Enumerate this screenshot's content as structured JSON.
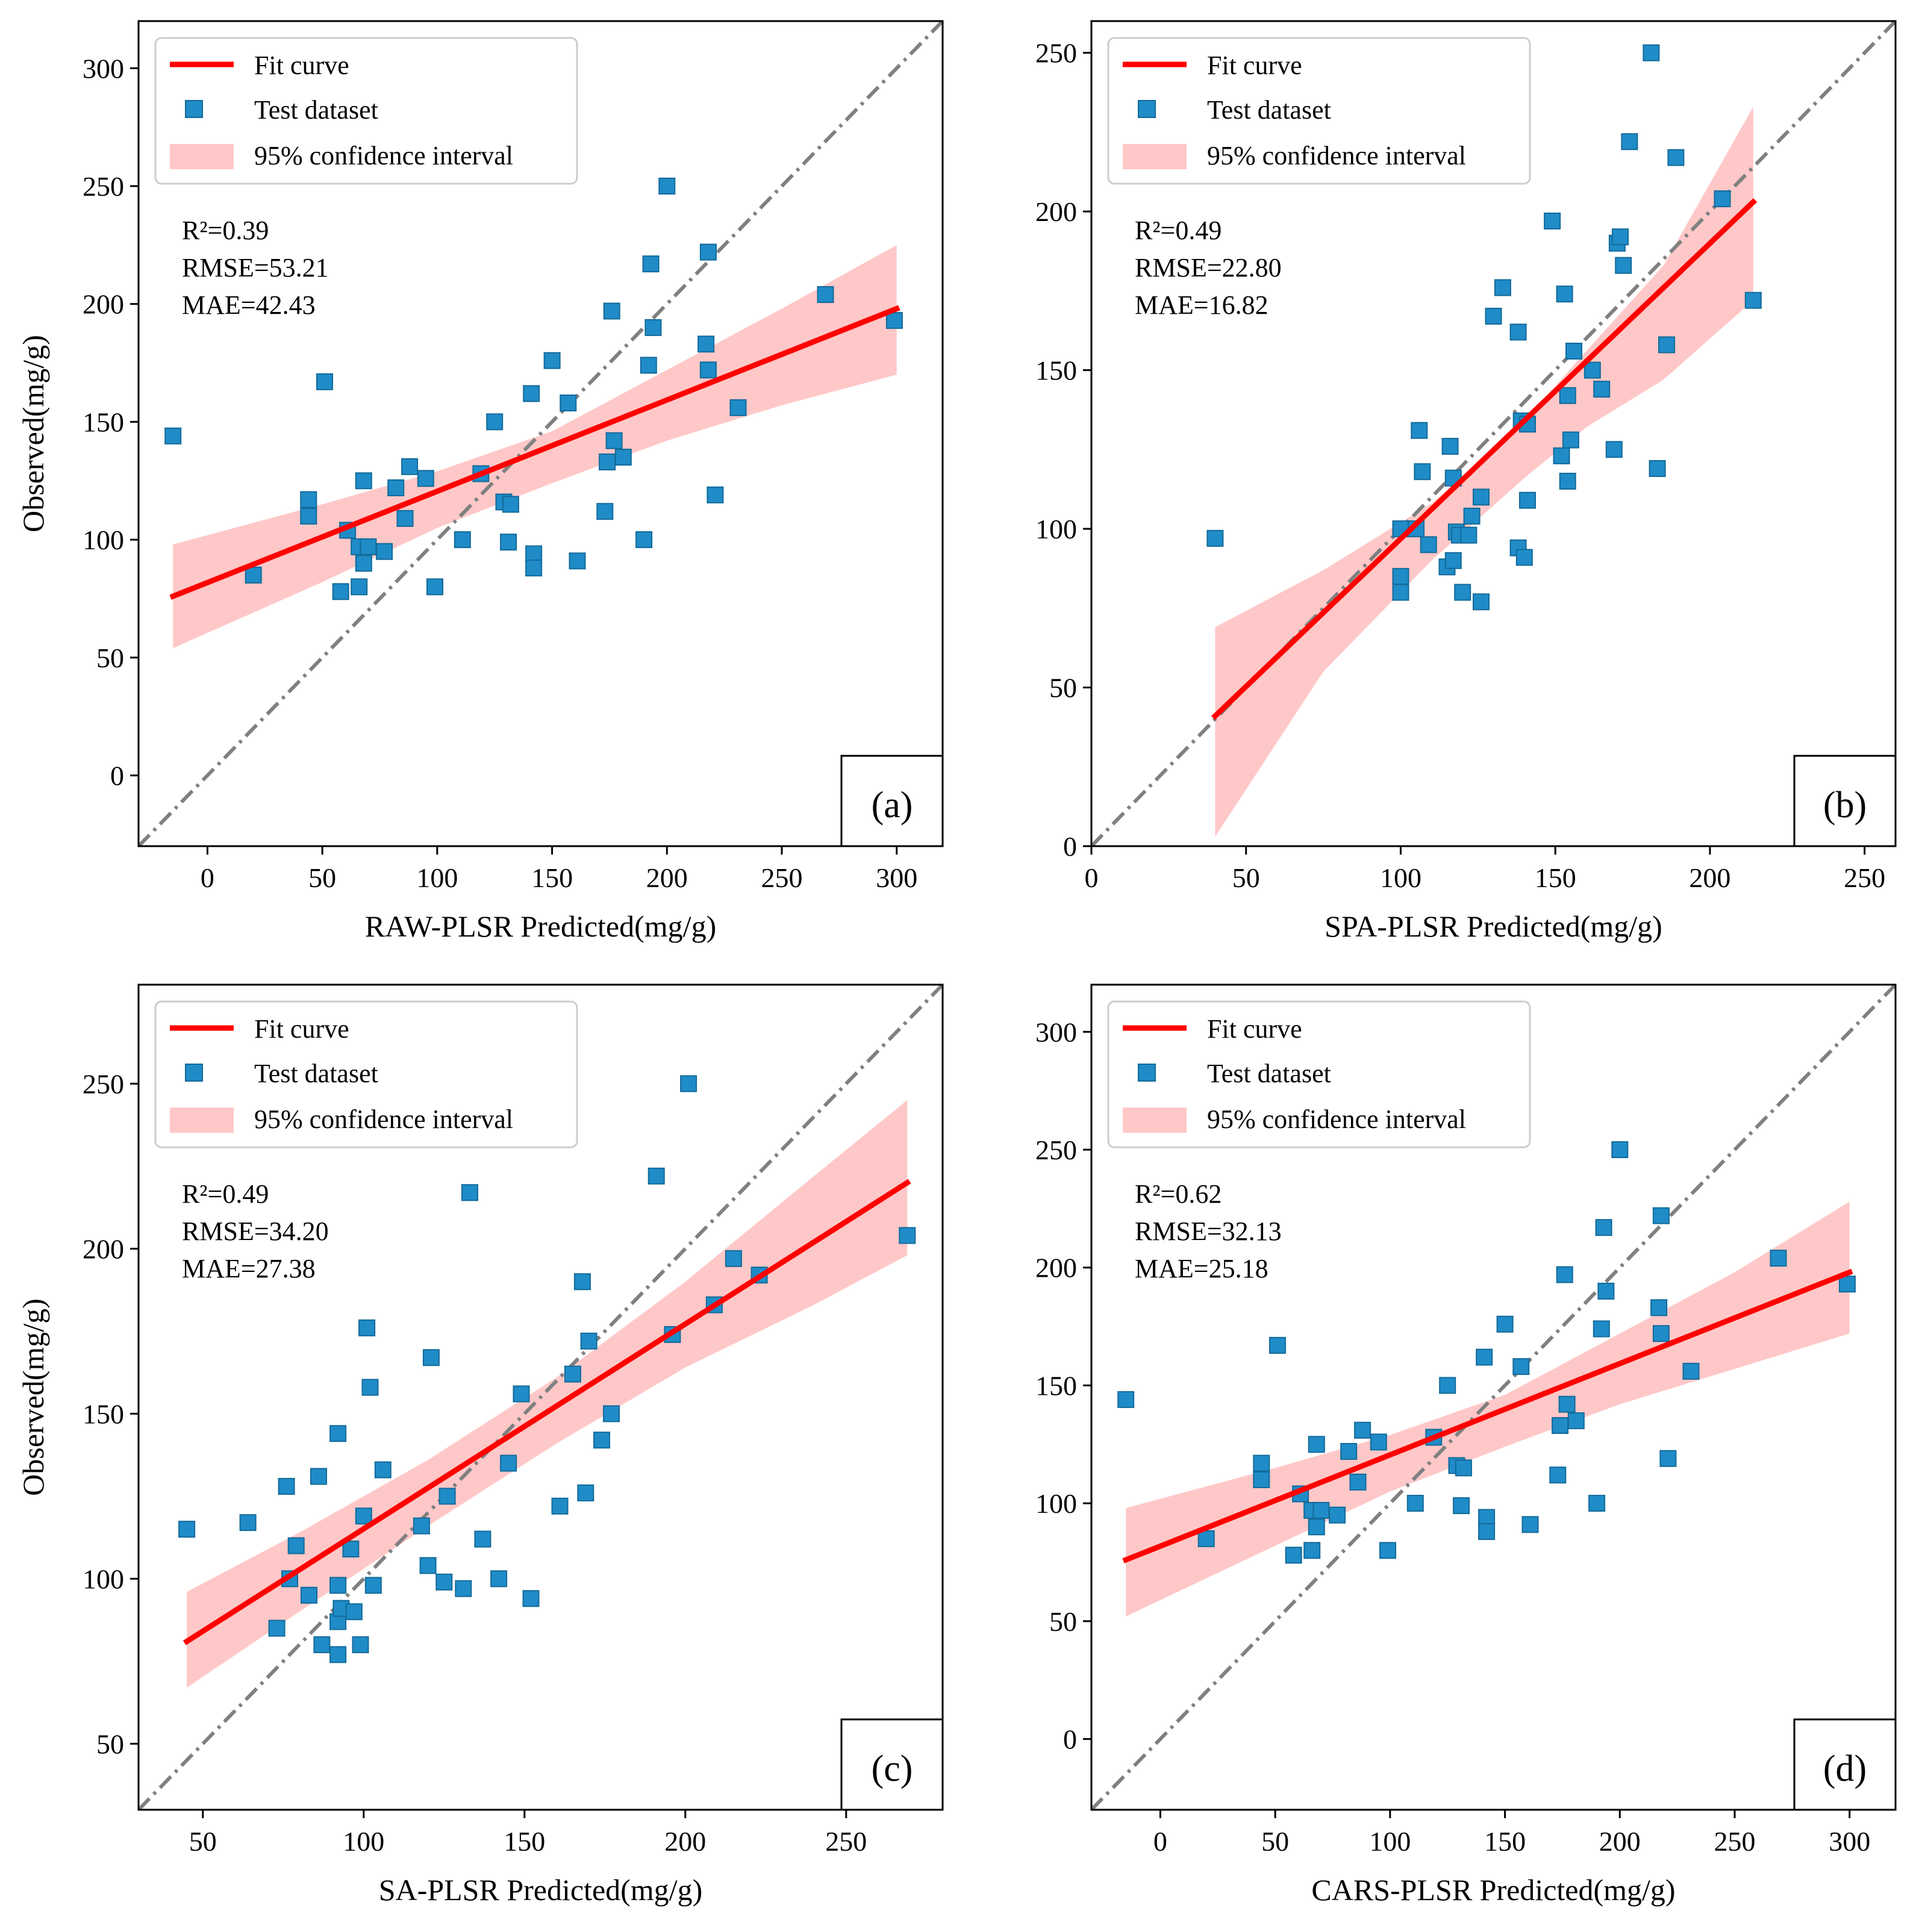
{
  "figure": {
    "colors": {
      "fit": "#ff0000",
      "points": "#1f8cc8",
      "points_stroke": "#136a99",
      "ci_fill": "#ffc8c8",
      "identity": "#808080",
      "axis": "#000000"
    },
    "legend": {
      "fit": "Fit curve",
      "test": "Test dataset",
      "ci": "95% confidence interval"
    }
  },
  "chart_data": [
    {
      "type": "scatter",
      "panel_label": "(a)",
      "xlabel": "RAW-PLSR Predicted(mg/g)",
      "ylabel": "Observed(mg/g)",
      "xlim": [
        -30,
        320
      ],
      "ylim": [
        -30,
        320
      ],
      "xticks": [
        0,
        50,
        100,
        150,
        200,
        250,
        300
      ],
      "yticks": [
        0,
        50,
        100,
        150,
        200,
        250,
        300
      ],
      "stats": [
        "R²=0.39",
        "RMSE=53.21",
        "MAE=42.43"
      ],
      "fit_line": {
        "x": [
          -15,
          300
        ],
        "y": [
          76,
          198
        ]
      },
      "ci": {
        "x": [
          -15,
          50,
          100,
          150,
          200,
          250,
          300
        ],
        "upper": [
          98,
          115,
          129,
          146,
          172,
          198,
          225
        ],
        "lower": [
          54,
          82,
          105,
          124,
          142,
          157,
          170
        ]
      },
      "points": [
        [
          -15,
          144
        ],
        [
          20,
          85
        ],
        [
          44,
          117
        ],
        [
          44,
          110
        ],
        [
          51,
          167
        ],
        [
          58,
          78
        ],
        [
          61,
          104
        ],
        [
          66,
          80
        ],
        [
          66,
          97
        ],
        [
          68,
          125
        ],
        [
          68,
          90
        ],
        [
          70,
          97
        ],
        [
          77,
          95
        ],
        [
          82,
          122
        ],
        [
          86,
          109
        ],
        [
          88,
          131
        ],
        [
          95,
          126
        ],
        [
          99,
          80
        ],
        [
          111,
          100
        ],
        [
          119,
          128
        ],
        [
          125,
          150
        ],
        [
          129,
          116
        ],
        [
          131,
          99
        ],
        [
          132,
          115
        ],
        [
          141,
          162
        ],
        [
          142,
          94
        ],
        [
          142,
          88
        ],
        [
          150,
          176
        ],
        [
          157,
          158
        ],
        [
          161,
          91
        ],
        [
          173,
          112
        ],
        [
          174,
          133
        ],
        [
          176,
          197
        ],
        [
          177,
          142
        ],
        [
          181,
          135
        ],
        [
          190,
          100
        ],
        [
          192,
          174
        ],
        [
          193,
          217
        ],
        [
          194,
          190
        ],
        [
          200,
          250
        ],
        [
          217,
          183
        ],
        [
          218,
          222
        ],
        [
          218,
          172
        ],
        [
          221,
          119
        ],
        [
          231,
          156
        ],
        [
          269,
          204
        ],
        [
          299,
          193
        ]
      ]
    },
    {
      "type": "scatter",
      "panel_label": "(b)",
      "xlabel": "SPA-PLSR Predicted(mg/g)",
      "ylabel": "",
      "xlim": [
        0,
        260
      ],
      "ylim": [
        0,
        260
      ],
      "xticks": [
        0,
        50,
        100,
        150,
        200,
        250
      ],
      "yticks": [
        0,
        50,
        100,
        150,
        200,
        250
      ],
      "stats": [
        "R²=0.49",
        "RMSE=22.80",
        "MAE=16.82"
      ],
      "fit_line": {
        "x": [
          40,
          214
        ],
        "y": [
          41,
          203
        ]
      },
      "ci": {
        "x": [
          40,
          75,
          110,
          140,
          160,
          185,
          214
        ],
        "upper": [
          69,
          87,
          108,
          134,
          156,
          183,
          233
        ],
        "lower": [
          3,
          55,
          90,
          116,
          132,
          147,
          172
        ]
      },
      "points": [
        [
          40,
          97
        ],
        [
          100,
          100
        ],
        [
          100,
          85
        ],
        [
          100,
          80
        ],
        [
          105,
          100
        ],
        [
          106,
          131
        ],
        [
          107,
          118
        ],
        [
          109,
          95
        ],
        [
          115,
          88
        ],
        [
          116,
          126
        ],
        [
          117,
          116
        ],
        [
          117,
          90
        ],
        [
          118,
          99
        ],
        [
          119,
          98
        ],
        [
          120,
          80
        ],
        [
          122,
          98
        ],
        [
          123,
          104
        ],
        [
          126,
          110
        ],
        [
          126,
          77
        ],
        [
          130,
          167
        ],
        [
          133,
          176
        ],
        [
          138,
          162
        ],
        [
          138,
          94
        ],
        [
          139,
          134
        ],
        [
          140,
          91
        ],
        [
          141,
          133
        ],
        [
          141,
          109
        ],
        [
          149,
          197
        ],
        [
          152,
          123
        ],
        [
          153,
          174
        ],
        [
          154,
          142
        ],
        [
          154,
          115
        ],
        [
          155,
          128
        ],
        [
          156,
          156
        ],
        [
          162,
          150
        ],
        [
          165,
          144
        ],
        [
          169,
          125
        ],
        [
          170,
          190
        ],
        [
          171,
          192
        ],
        [
          172,
          183
        ],
        [
          174,
          222
        ],
        [
          181,
          250
        ],
        [
          183,
          119
        ],
        [
          186,
          158
        ],
        [
          189,
          217
        ],
        [
          204,
          204
        ],
        [
          214,
          172
        ]
      ]
    },
    {
      "type": "scatter",
      "panel_label": "(c)",
      "xlabel": "SA-PLSR Predicted(mg/g)",
      "ylabel": "Observed(mg/g)",
      "xlim": [
        30,
        280
      ],
      "ylim": [
        30,
        280
      ],
      "xticks": [
        50,
        100,
        150,
        200,
        250
      ],
      "yticks": [
        50,
        100,
        150,
        200,
        250
      ],
      "stats": [
        "R²=0.49",
        "RMSE=34.20",
        "MAE=27.38"
      ],
      "fit_line": {
        "x": [
          45,
          269
        ],
        "y": [
          81,
          220
        ]
      },
      "ci": {
        "x": [
          45,
          80,
          120,
          160,
          200,
          240,
          269
        ],
        "upper": [
          96,
          114,
          136,
          161,
          190,
          222,
          245
        ],
        "lower": [
          67,
          90,
          116,
          141,
          164,
          183,
          198
        ]
      },
      "points": [
        [
          45,
          115
        ],
        [
          64,
          117
        ],
        [
          73,
          85
        ],
        [
          76,
          128
        ],
        [
          77,
          100
        ],
        [
          79,
          110
        ],
        [
          83,
          95
        ],
        [
          86,
          131
        ],
        [
          87,
          80
        ],
        [
          92,
          144
        ],
        [
          92,
          98
        ],
        [
          92,
          87
        ],
        [
          92,
          77
        ],
        [
          93,
          91
        ],
        [
          96,
          109
        ],
        [
          97,
          90
        ],
        [
          99,
          80
        ],
        [
          100,
          119
        ],
        [
          101,
          176
        ],
        [
          102,
          158
        ],
        [
          103,
          98
        ],
        [
          106,
          133
        ],
        [
          118,
          116
        ],
        [
          120,
          104
        ],
        [
          121,
          167
        ],
        [
          125,
          99
        ],
        [
          126,
          125
        ],
        [
          131,
          97
        ],
        [
          133,
          217
        ],
        [
          137,
          112
        ],
        [
          142,
          100
        ],
        [
          145,
          135
        ],
        [
          149,
          156
        ],
        [
          152,
          94
        ],
        [
          161,
          122
        ],
        [
          165,
          162
        ],
        [
          168,
          190
        ],
        [
          169,
          126
        ],
        [
          170,
          172
        ],
        [
          174,
          142
        ],
        [
          177,
          150
        ],
        [
          191,
          222
        ],
        [
          196,
          174
        ],
        [
          201,
          250
        ],
        [
          209,
          183
        ],
        [
          215,
          197
        ],
        [
          223,
          192
        ],
        [
          269,
          204
        ]
      ]
    },
    {
      "type": "scatter",
      "panel_label": "(d)",
      "xlabel": "CARS-PLSR Predicted(mg/g)",
      "ylabel": "",
      "xlim": [
        -30,
        320
      ],
      "ylim": [
        -30,
        320
      ],
      "xticks": [
        0,
        50,
        100,
        150,
        200,
        250,
        300
      ],
      "yticks": [
        0,
        50,
        100,
        150,
        200,
        250,
        300
      ],
      "stats": [
        "R²=0.62",
        "RMSE=32.13",
        "MAE=25.18"
      ],
      "fit_line": {
        "x": [
          -15,
          300
        ],
        "y": [
          76,
          198
        ]
      },
      "ci": {
        "x": [
          -15,
          50,
          100,
          150,
          200,
          250,
          300
        ],
        "upper": [
          98,
          115,
          129,
          146,
          172,
          198,
          228
        ],
        "lower": [
          52,
          82,
          105,
          124,
          142,
          157,
          172
        ]
      },
      "points": [
        [
          -15,
          144
        ],
        [
          20,
          85
        ],
        [
          44,
          117
        ],
        [
          44,
          110
        ],
        [
          51,
          167
        ],
        [
          58,
          78
        ],
        [
          61,
          104
        ],
        [
          66,
          80
        ],
        [
          66,
          97
        ],
        [
          68,
          125
        ],
        [
          68,
          90
        ],
        [
          70,
          97
        ],
        [
          77,
          95
        ],
        [
          82,
          122
        ],
        [
          86,
          109
        ],
        [
          88,
          131
        ],
        [
          95,
          126
        ],
        [
          99,
          80
        ],
        [
          111,
          100
        ],
        [
          119,
          128
        ],
        [
          125,
          150
        ],
        [
          129,
          116
        ],
        [
          131,
          99
        ],
        [
          132,
          115
        ],
        [
          141,
          162
        ],
        [
          142,
          94
        ],
        [
          142,
          88
        ],
        [
          150,
          176
        ],
        [
          157,
          158
        ],
        [
          161,
          91
        ],
        [
          173,
          112
        ],
        [
          174,
          133
        ],
        [
          176,
          197
        ],
        [
          177,
          142
        ],
        [
          181,
          135
        ],
        [
          190,
          100
        ],
        [
          192,
          174
        ],
        [
          193,
          217
        ],
        [
          194,
          190
        ],
        [
          200,
          250
        ],
        [
          217,
          183
        ],
        [
          218,
          222
        ],
        [
          218,
          172
        ],
        [
          221,
          119
        ],
        [
          231,
          156
        ],
        [
          269,
          204
        ],
        [
          299,
          193
        ]
      ]
    }
  ]
}
